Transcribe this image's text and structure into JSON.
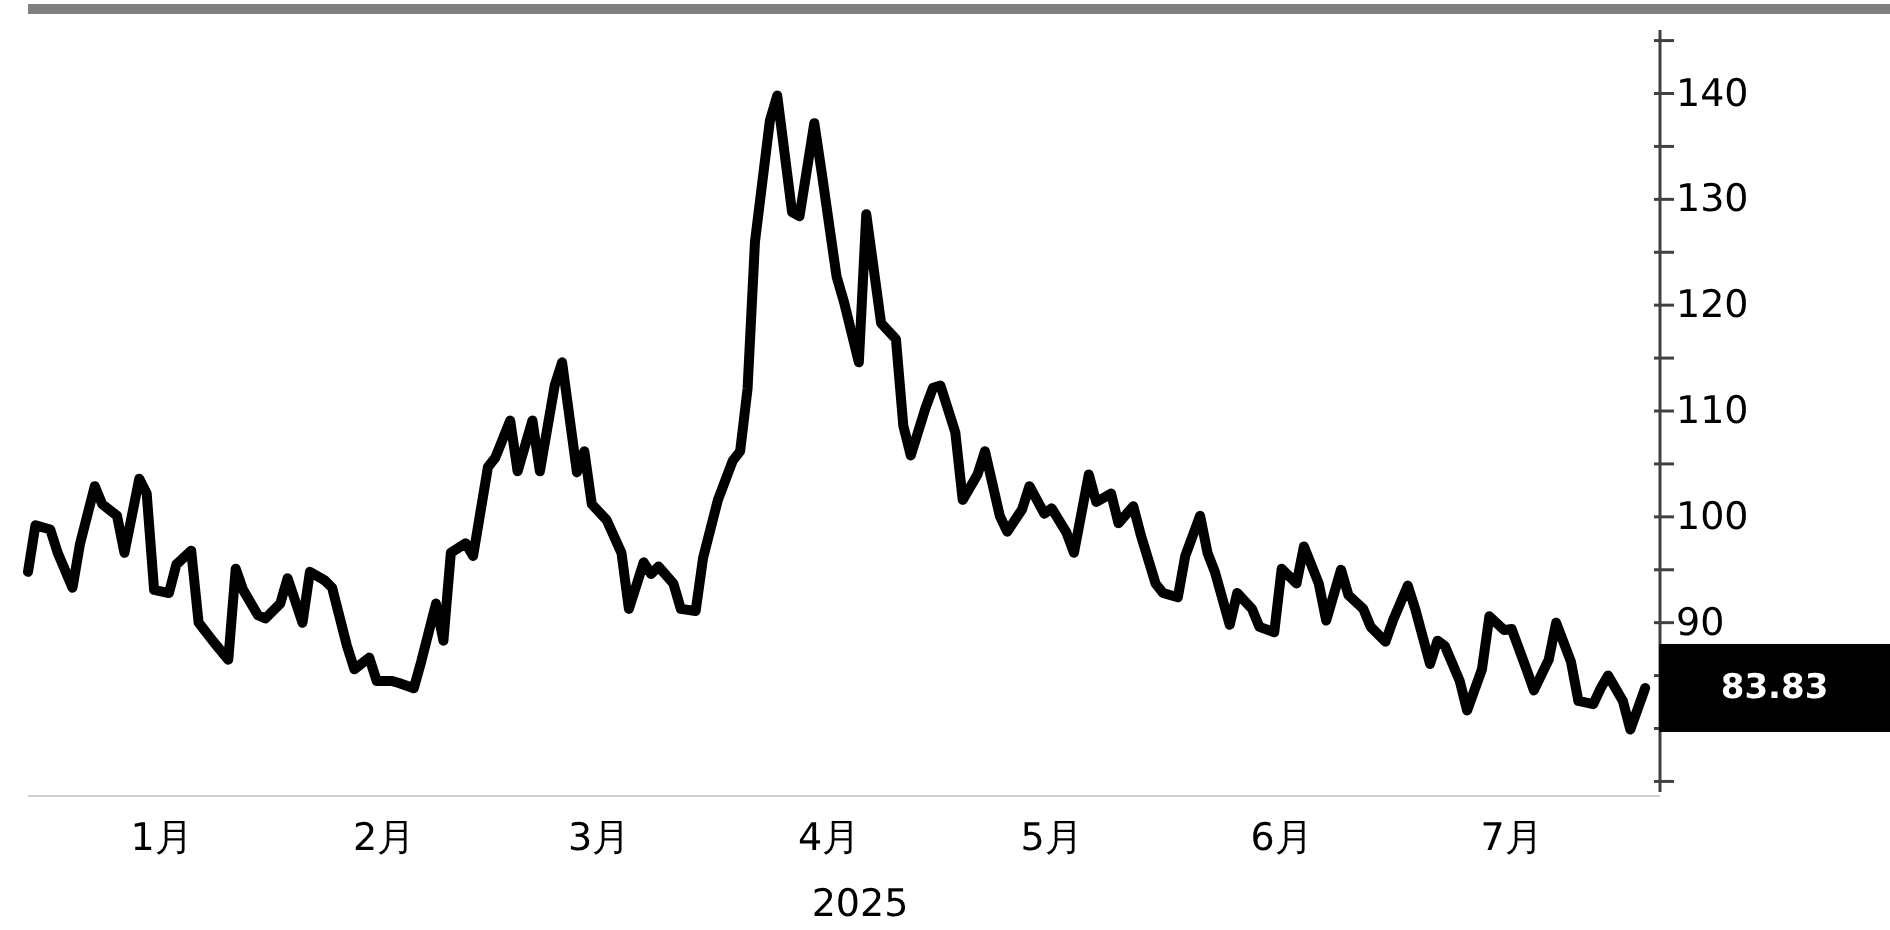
{
  "chart_data": {
    "type": "line",
    "xlabel": "2025",
    "x": [
      "2024-12-28",
      "2024-12-29",
      "2024-12-31",
      "2025-01-01",
      "2025-01-03",
      "2025-01-04",
      "2025-01-06",
      "2025-01-07",
      "2025-01-09",
      "2025-01-10",
      "2025-01-12",
      "2025-01-13",
      "2025-01-14",
      "2025-01-16",
      "2025-01-17",
      "2025-01-19",
      "2025-01-20",
      "2025-01-22",
      "2025-01-24",
      "2025-01-25",
      "2025-01-26",
      "2025-01-28",
      "2025-01-29",
      "2025-01-31",
      "2025-02-01",
      "2025-02-03",
      "2025-02-04",
      "2025-02-06",
      "2025-02-07",
      "2025-02-09",
      "2025-02-10",
      "2025-02-12",
      "2025-02-13",
      "2025-02-15",
      "2025-02-16",
      "2025-02-18",
      "2025-02-19",
      "2025-02-21",
      "2025-02-22",
      "2025-02-23",
      "2025-02-25",
      "2025-02-26",
      "2025-02-28",
      "2025-03-01",
      "2025-03-03",
      "2025-03-04",
      "2025-03-06",
      "2025-03-07",
      "2025-03-09",
      "2025-03-10",
      "2025-03-12",
      "2025-03-13",
      "2025-03-14",
      "2025-03-16",
      "2025-03-18",
      "2025-03-19",
      "2025-03-21",
      "2025-03-22",
      "2025-03-23",
      "2025-03-25",
      "2025-03-26",
      "2025-03-28",
      "2025-03-29",
      "2025-03-31",
      "2025-04-02",
      "2025-04-03",
      "2025-04-04",
      "2025-04-05",
      "2025-04-07",
      "2025-04-08",
      "2025-04-10",
      "2025-04-11",
      "2025-04-13",
      "2025-04-14",
      "2025-04-16",
      "2025-04-17",
      "2025-04-19",
      "2025-04-20",
      "2025-04-22",
      "2025-04-24",
      "2025-04-25",
      "2025-04-26",
      "2025-04-28",
      "2025-04-29",
      "2025-04-30",
      "2025-05-02",
      "2025-05-03",
      "2025-05-05",
      "2025-05-06",
      "2025-05-08",
      "2025-05-09",
      "2025-05-11",
      "2025-05-12",
      "2025-05-14",
      "2025-05-15",
      "2025-05-17",
      "2025-05-18",
      "2025-05-20",
      "2025-05-21",
      "2025-05-23",
      "2025-05-24",
      "2025-05-26",
      "2025-05-27",
      "2025-05-29",
      "2025-05-30",
      "2025-06-01",
      "2025-06-02",
      "2025-06-04",
      "2025-06-05",
      "2025-06-06",
      "2025-06-08",
      "2025-06-09",
      "2025-06-11",
      "2025-06-12",
      "2025-06-14",
      "2025-06-15",
      "2025-06-17",
      "2025-06-18",
      "2025-06-20",
      "2025-06-21",
      "2025-06-23",
      "2025-06-24",
      "2025-06-26",
      "2025-06-27",
      "2025-06-29",
      "2025-06-30",
      "2025-07-02",
      "2025-07-03",
      "2025-07-05",
      "2025-07-06",
      "2025-07-07",
      "2025-07-09",
      "2025-07-10",
      "2025-07-12",
      "2025-07-13",
      "2025-07-15",
      "2025-07-16",
      "2025-07-18",
      "2025-07-19",
      "2025-07-21",
      "2025-07-22",
      "2025-07-24",
      "2025-07-25",
      "2025-07-27",
      "2025-07-28",
      "2025-07-29",
      "2025-07-31",
      "2025-08-01",
      "2025-08-03"
    ],
    "series": [
      {
        "color": "#000000",
        "values": [
          94.8,
          99.2,
          98.8,
          96.6,
          93.3,
          97.4,
          102.9,
          101.2,
          100.1,
          96.6,
          103.6,
          102.2,
          93.1,
          92.8,
          95.5,
          96.8,
          90.0,
          88.2,
          86.5,
          95.1,
          93.1,
          90.7,
          90.4,
          91.8,
          94.2,
          90.0,
          94.8,
          94.0,
          93.3,
          87.8,
          85.6,
          86.7,
          84.5,
          84.5,
          84.3,
          83.8,
          86.3,
          91.8,
          88.3,
          96.6,
          97.5,
          96.3,
          104.7,
          105.6,
          109.1,
          104.3,
          109.1,
          104.3,
          112.4,
          114.6,
          104.2,
          106.2,
          101.2,
          99.7,
          96.6,
          91.3,
          95.7,
          94.6,
          95.3,
          93.7,
          91.3,
          91.1,
          96.1,
          101.6,
          105.3,
          106.2,
          112.1,
          126.0,
          137.4,
          139.8,
          128.8,
          128.4,
          137.2,
          132.5,
          122.7,
          120.3,
          114.6,
          128.6,
          118.3,
          116.8,
          108.6,
          105.8,
          110.3,
          112.2,
          112.4,
          108.0,
          101.6,
          104.0,
          106.2,
          100.1,
          98.6,
          100.7,
          102.9,
          100.3,
          100.8,
          98.5,
          96.6,
          104.0,
          101.4,
          102.2,
          99.4,
          101.0,
          98.3,
          93.7,
          92.8,
          92.4,
          96.3,
          100.1,
          96.6,
          94.8,
          89.8,
          92.8,
          91.3,
          89.6,
          89.1,
          95.1,
          93.7,
          97.2,
          93.7,
          90.2,
          95.0,
          92.6,
          91.3,
          89.6,
          88.2,
          90.2,
          93.5,
          91.3,
          86.1,
          88.3,
          87.8,
          84.5,
          81.7,
          85.6,
          90.6,
          89.3,
          89.4,
          85.6,
          83.6,
          86.5,
          90.0,
          86.3,
          82.6,
          82.3,
          83.8,
          85.0,
          82.6,
          79.9,
          83.83
        ]
      }
    ],
    "xlim": [
      "2024-12-28",
      "2025-08-05"
    ],
    "xticks": [
      {
        "value": "2025-01-15",
        "label": "1月"
      },
      {
        "value": "2025-02-14",
        "label": "2月"
      },
      {
        "value": "2025-03-15",
        "label": "3月"
      },
      {
        "value": "2025-04-15",
        "label": "4月"
      },
      {
        "value": "2025-05-15",
        "label": "5月"
      },
      {
        "value": "2025-06-15",
        "label": "6月"
      },
      {
        "value": "2025-07-16",
        "label": "7月"
      }
    ],
    "ylim": [
      74,
      146
    ],
    "yticks": [
      {
        "value": 75,
        "label": null
      },
      {
        "value": 80,
        "label": null
      },
      {
        "value": 85,
        "label": null
      },
      90,
      {
        "value": 95,
        "label": null
      },
      100,
      {
        "value": 105,
        "label": null
      },
      110,
      {
        "value": 115,
        "label": null
      },
      120,
      {
        "value": 125,
        "label": null
      },
      130,
      {
        "value": 135,
        "label": null
      },
      140,
      {
        "value": 145,
        "label": null
      }
    ],
    "annotations": [
      {
        "text": "83.83",
        "x": "2025-08-03",
        "y": 83.83
      }
    ]
  }
}
